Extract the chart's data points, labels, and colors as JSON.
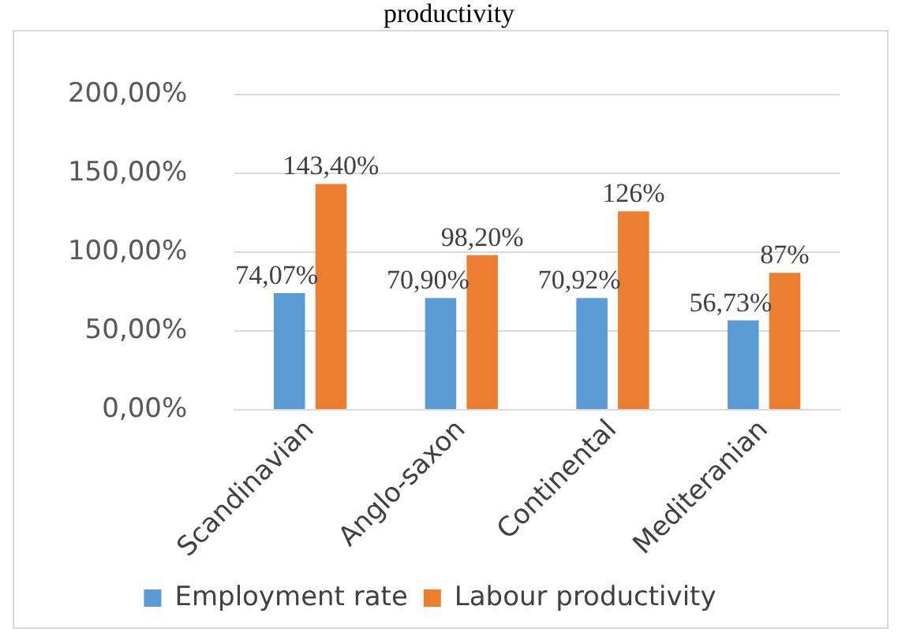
{
  "chart_data": {
    "type": "bar",
    "title": "productivity",
    "categories": [
      "Scandinavian",
      "Anglo-saxon",
      "Continental",
      "Mediteranian"
    ],
    "series": [
      {
        "name": "Employment rate",
        "color": "#5b9bd5",
        "values": [
          74.07,
          70.9,
          70.92,
          56.73
        ],
        "value_labels": [
          "74,07%",
          "70,90%",
          "70,92%",
          "56,73%"
        ]
      },
      {
        "name": "Labour productivity",
        "color": "#ed7d31",
        "values": [
          143.4,
          98.2,
          126,
          87
        ],
        "value_labels": [
          "143,40%",
          "98,20%",
          "126%",
          "87%"
        ]
      }
    ],
    "ylim": [
      0,
      200
    ],
    "yticks": [
      {
        "value": 0,
        "label": "0,00%"
      },
      {
        "value": 50,
        "label": "50,00%"
      },
      {
        "value": 100,
        "label": "100,00%"
      },
      {
        "value": 150,
        "label": "150,00%"
      },
      {
        "value": 200,
        "label": "200,00%"
      }
    ],
    "grid": "y",
    "legend": "bottom"
  }
}
